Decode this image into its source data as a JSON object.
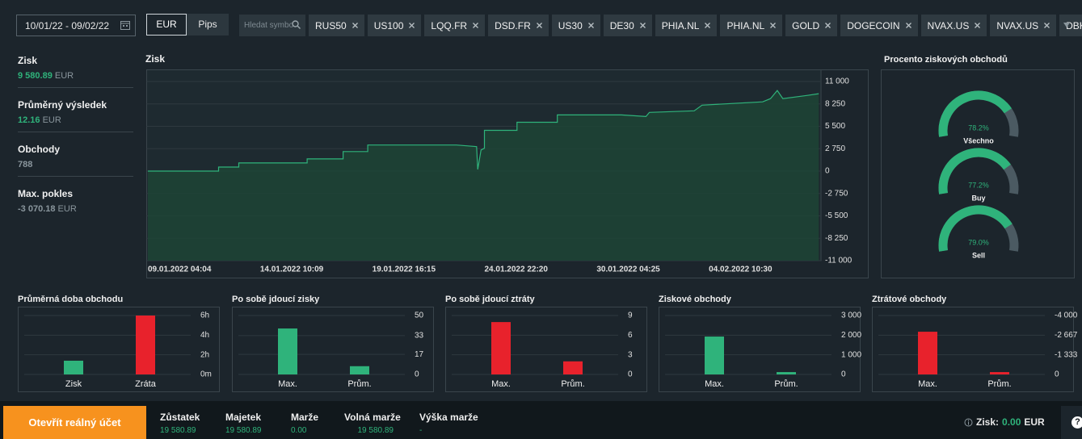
{
  "filters": {
    "date_range": "10/01/22 - 09/02/22",
    "units": [
      "EUR",
      "Pips"
    ],
    "search_placeholder": "Hledat symbo",
    "symbols": [
      "RUS50",
      "US100",
      "LQQ.FR",
      "DSD.FR",
      "US30",
      "DE30",
      "PHIA.NL",
      "PHIA.NL",
      "GOLD",
      "DOGECOIN",
      "NVAX.US",
      "NVAX.US",
      "DBK.DE"
    ]
  },
  "stats": [
    {
      "label": "Zisk",
      "value": "9 580.89",
      "unit": "EUR"
    },
    {
      "label": "Průměrný výsledek",
      "value": "12.16",
      "unit": "EUR"
    },
    {
      "label": "Obchody",
      "value": "788"
    },
    {
      "label": "Max. pokles",
      "value": "-3 070.18",
      "unit": "EUR"
    }
  ],
  "chart_data": [
    {
      "type": "line",
      "title": "Zisk",
      "x": [
        0,
        0.63,
        0.63,
        0.81,
        0.81,
        1.42,
        1.42,
        1.74,
        1.74,
        1.96,
        1.96,
        2.75,
        2.93,
        2.94,
        2.97,
        3.0,
        3.0,
        3.29,
        3.29,
        3.65,
        3.65,
        4.22,
        4.44,
        4.47,
        4.87,
        4.94,
        5.48,
        5.55,
        5.61,
        5.66,
        5.88,
        5.98
      ],
      "series": [
        {
          "color": "#2fb37b",
          "values": [
            0,
            0,
            500,
            500,
            1000,
            1000,
            1500,
            1500,
            2400,
            2400,
            3200,
            3200,
            3000,
            200,
            2600,
            2800,
            5000,
            5000,
            6000,
            6000,
            6900,
            6900,
            6700,
            7200,
            7400,
            8100,
            8500,
            8900,
            9900,
            8900,
            9300,
            9500
          ]
        }
      ],
      "xlim": [
        0,
        6
      ],
      "xticks": [
        {
          "value": 0,
          "label": "09.01.2022 04:04"
        },
        {
          "value": 1,
          "label": "14.01.2022 10:09"
        },
        {
          "value": 2,
          "label": "19.01.2022 16:15"
        },
        {
          "value": 3,
          "label": "24.01.2022 22:20"
        },
        {
          "value": 4,
          "label": "30.01.2022 04:25"
        },
        {
          "value": 5,
          "label": "04.02.2022 10:30"
        }
      ],
      "ylim": [
        -11000,
        11000
      ],
      "yticks": [
        {
          "value": 11000,
          "label": "11 000"
        },
        {
          "value": 8250,
          "label": "8 250"
        },
        {
          "value": 5500,
          "label": "5 500"
        },
        {
          "value": 2750,
          "label": "2 750"
        },
        0,
        {
          "value": -2750,
          "label": "-2 750"
        },
        {
          "value": -5500,
          "label": "-5 500"
        },
        {
          "value": -8250,
          "label": "-8 250"
        },
        {
          "value": -11000,
          "label": "-11 000"
        }
      ],
      "grid": true,
      "fill": "#1d4636"
    },
    {
      "type": "gauge",
      "title": "Procento ziskových obchodů",
      "categories": [
        "Všechno",
        "Buy",
        "Sell"
      ],
      "values": [
        78.2,
        77.2,
        79.0
      ],
      "value_labels": [
        "78.2%",
        "77.2%",
        "79.0%"
      ],
      "ylim": [
        0,
        100
      ],
      "color": "#2fb37b",
      "track_color": "#4b5a62"
    },
    {
      "type": "bar",
      "title": "Průměrná doba obchodu",
      "categories": [
        "Zisk",
        "Zráta"
      ],
      "values": [
        1.4,
        6.0
      ],
      "colors": [
        "#2fb37b",
        "#e8222c"
      ],
      "ylim": [
        0,
        6
      ],
      "yticks": [
        {
          "value": 6,
          "label": "6h"
        },
        {
          "value": 4,
          "label": "4h"
        },
        {
          "value": 2,
          "label": "2h"
        },
        {
          "value": 0,
          "label": "0m"
        }
      ]
    },
    {
      "type": "bar",
      "title": "Po sobě jdoucí zisky",
      "categories": [
        "Max.",
        "Prům."
      ],
      "values": [
        39,
        7
      ],
      "colors": [
        "#2fb37b",
        "#2fb37b"
      ],
      "ylim": [
        0,
        50
      ],
      "yticks": [
        50,
        33,
        17,
        0
      ]
    },
    {
      "type": "bar",
      "title": "Po sobě jdoucí ztráty",
      "categories": [
        "Max.",
        "Prům."
      ],
      "values": [
        8,
        2
      ],
      "colors": [
        "#e8222c",
        "#e8222c"
      ],
      "ylim": [
        0,
        9
      ],
      "yticks": [
        9,
        6,
        3,
        0
      ]
    },
    {
      "type": "bar",
      "title": "Ziskové obchody",
      "categories": [
        "Max.",
        "Prům."
      ],
      "values": [
        1930,
        120
      ],
      "colors": [
        "#2fb37b",
        "#2fb37b"
      ],
      "ylim": [
        0,
        3000
      ],
      "yticks": [
        {
          "value": 3000,
          "label": "3 000"
        },
        {
          "value": 2000,
          "label": "2 000"
        },
        {
          "value": 1000,
          "label": "1 000"
        },
        0
      ]
    },
    {
      "type": "bar",
      "title": "Ztrátové obchody",
      "categories": [
        "Max.",
        "Prům."
      ],
      "values": [
        -2900,
        -160
      ],
      "colors": [
        "#e8222c",
        "#e8222c"
      ],
      "ylim": [
        0,
        -4000
      ],
      "yticks": [
        {
          "value": -4000,
          "label": "-4 000"
        },
        {
          "value": -2667,
          "label": "-2 667"
        },
        {
          "value": -1333,
          "label": "-1 333"
        },
        0
      ]
    }
  ],
  "footer": {
    "button": "Otevřít reálný účet",
    "fields": [
      {
        "label": "Zůstatek",
        "value": "19 580.89"
      },
      {
        "label": "Majetek",
        "value": "19 580.89"
      },
      {
        "label": "Marže",
        "value": "0.00"
      },
      {
        "label": "Volná marže",
        "value": "19 580.89"
      },
      {
        "label": "Výška marže",
        "value": "-"
      }
    ],
    "profit_label": "Zisk:",
    "profit_value": "0.00",
    "profit_unit": "EUR",
    "help": "?"
  }
}
